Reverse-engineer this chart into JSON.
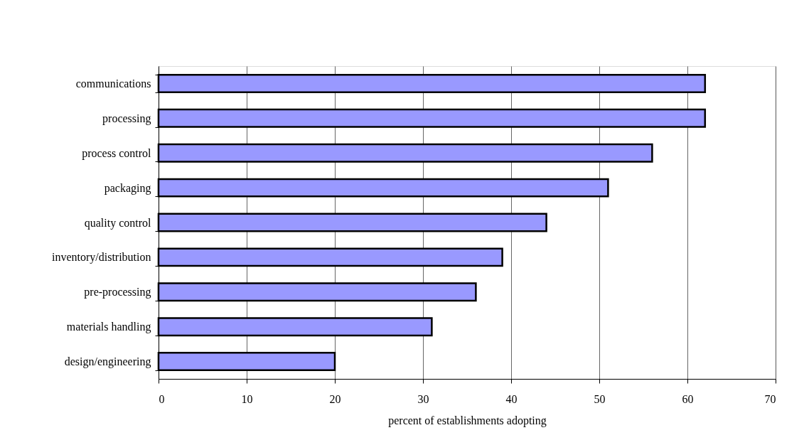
{
  "chart_data": {
    "type": "bar",
    "orientation": "horizontal",
    "xlabel": "percent of establishments adopting",
    "categories": [
      "communications",
      "processing",
      "process control",
      "packaging",
      "quality control",
      "inventory/distribution",
      "pre-processing",
      "materials handling",
      "design/engineering"
    ],
    "values": [
      62,
      62,
      56,
      51,
      44,
      39,
      36,
      31,
      20
    ],
    "color": "#9999ff",
    "xlim": [
      0,
      70
    ],
    "xticks": [
      0,
      10,
      20,
      30,
      40,
      50,
      60,
      70
    ],
    "grid": "x"
  }
}
